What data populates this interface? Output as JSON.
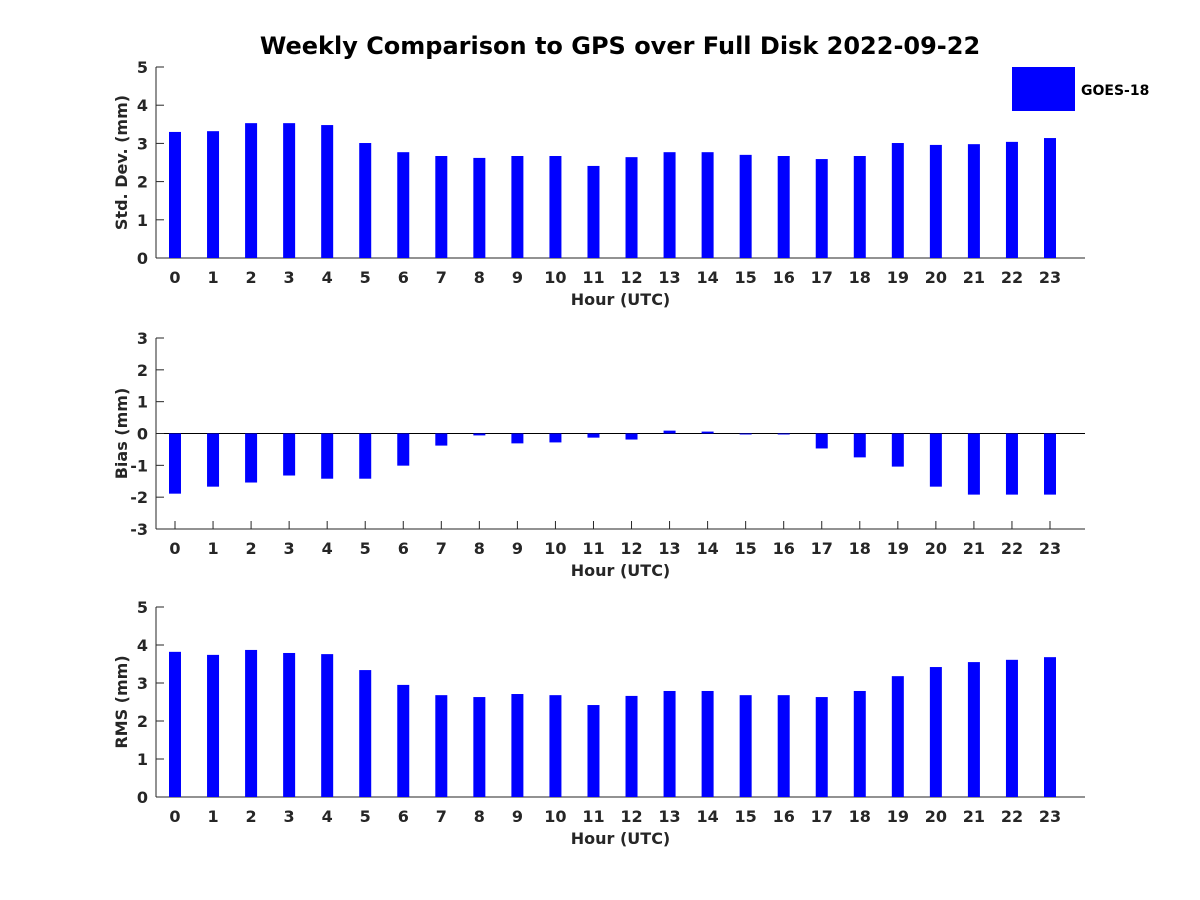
{
  "chart_data": {
    "title": "Weekly Comparison to GPS over Full Disk 2022-09-22",
    "legend": {
      "entries": [
        "GOES-18"
      ],
      "placement": "top-right"
    },
    "bar_color": "#0000ff",
    "panels": [
      {
        "type": "bar",
        "xlabel": "Hour (UTC)",
        "ylabel": "Std. Dev. (mm)",
        "ylim": [
          0,
          5
        ],
        "yticks": [
          "0",
          "1",
          "2",
          "3",
          "4",
          "5"
        ],
        "categories": [
          "0",
          "1",
          "2",
          "3",
          "4",
          "5",
          "6",
          "7",
          "8",
          "9",
          "10",
          "11",
          "12",
          "13",
          "14",
          "15",
          "16",
          "17",
          "18",
          "19",
          "20",
          "21",
          "22",
          "23"
        ],
        "series": [
          {
            "name": "GOES-18",
            "values": [
              3.3,
              3.32,
              3.53,
              3.53,
              3.48,
              3.01,
              2.77,
              2.67,
              2.62,
              2.67,
              2.67,
              2.41,
              2.64,
              2.77,
              2.77,
              2.7,
              2.67,
              2.59,
              2.67,
              3.01,
              2.96,
              2.98,
              3.04,
              3.14
            ]
          }
        ]
      },
      {
        "type": "bar",
        "xlabel": "Hour (UTC)",
        "ylabel": "Bias (mm)",
        "ylim": [
          -3,
          3
        ],
        "yticks": [
          "-3",
          "-2",
          "-1",
          "0",
          "1",
          "2",
          "3"
        ],
        "categories": [
          "0",
          "1",
          "2",
          "3",
          "4",
          "5",
          "6",
          "7",
          "8",
          "9",
          "10",
          "11",
          "12",
          "13",
          "14",
          "15",
          "16",
          "17",
          "18",
          "19",
          "20",
          "21",
          "22",
          "23"
        ],
        "series": [
          {
            "name": "GOES-18",
            "values": [
              -1.89,
              -1.67,
              -1.54,
              -1.32,
              -1.42,
              -1.42,
              -1.01,
              -0.38,
              -0.06,
              -0.31,
              -0.28,
              -0.13,
              -0.19,
              0.09,
              0.06,
              -0.03,
              -0.03,
              -0.47,
              -0.75,
              -1.04,
              -1.67,
              -1.92,
              -1.92,
              -1.92
            ]
          }
        ]
      },
      {
        "type": "bar",
        "xlabel": "Hour (UTC)",
        "ylabel": "RMS (mm)",
        "ylim": [
          0,
          5
        ],
        "yticks": [
          "0",
          "1",
          "2",
          "3",
          "4",
          "5"
        ],
        "categories": [
          "0",
          "1",
          "2",
          "3",
          "4",
          "5",
          "6",
          "7",
          "8",
          "9",
          "10",
          "11",
          "12",
          "13",
          "14",
          "15",
          "16",
          "17",
          "18",
          "19",
          "20",
          "21",
          "22",
          "23"
        ],
        "series": [
          {
            "name": "GOES-18",
            "values": [
              3.82,
              3.74,
              3.87,
              3.79,
              3.76,
              3.34,
              2.95,
              2.68,
              2.63,
              2.71,
              2.68,
              2.42,
              2.66,
              2.79,
              2.79,
              2.68,
              2.68,
              2.63,
              2.79,
              3.18,
              3.42,
              3.55,
              3.61,
              3.68
            ]
          }
        ]
      }
    ]
  }
}
